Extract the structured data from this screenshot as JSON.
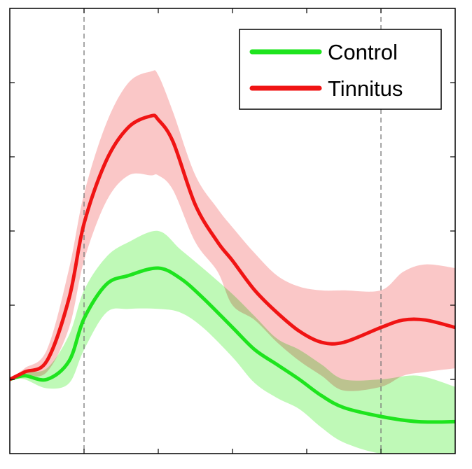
{
  "chart_data": {
    "type": "line",
    "title": "",
    "xlabel": "",
    "ylabel": "",
    "xlim": [
      0,
      6
    ],
    "ylim": [
      -1,
      5
    ],
    "grid": false,
    "legend_position": "top-right",
    "vertical_lines": [
      1,
      5
    ],
    "series": [
      {
        "name": "Control",
        "color": "#1ee41e",
        "band_color": "#b4f8aa",
        "x": [
          0,
          0.2,
          0.5,
          0.8,
          1.0,
          1.3,
          1.6,
          2.0,
          2.3,
          2.6,
          3.0,
          3.3,
          3.6,
          3.9,
          4.2,
          4.5,
          5.0,
          5.5,
          6.0
        ],
        "mean": [
          0.0,
          0.05,
          0.0,
          0.25,
          0.82,
          1.28,
          1.4,
          1.5,
          1.36,
          1.1,
          0.7,
          0.4,
          0.2,
          0.0,
          -0.22,
          -0.38,
          -0.5,
          -0.57,
          -0.57
        ],
        "upper": [
          0.0,
          0.1,
          0.15,
          0.6,
          1.2,
          1.65,
          1.85,
          2.0,
          1.75,
          1.5,
          1.15,
          0.85,
          0.55,
          0.4,
          0.2,
          0.0,
          0.0,
          0.05,
          -0.1
        ],
        "lower": [
          0.0,
          0.0,
          -0.12,
          -0.05,
          0.4,
          0.9,
          0.95,
          0.95,
          0.9,
          0.7,
          0.3,
          -0.05,
          -0.25,
          -0.4,
          -0.65,
          -0.85,
          -1.0,
          -1.0,
          -1.0
        ]
      },
      {
        "name": "Tinnitus",
        "color": "#f01414",
        "band_color": "#f8b4b4",
        "x": [
          0,
          0.2,
          0.5,
          0.8,
          1.0,
          1.3,
          1.6,
          1.9,
          2.0,
          2.2,
          2.5,
          2.8,
          3.0,
          3.3,
          3.6,
          3.9,
          4.2,
          4.5,
          5.0,
          5.3,
          5.6,
          6.0
        ],
        "mean": [
          0.0,
          0.1,
          0.25,
          1.1,
          2.1,
          2.95,
          3.4,
          3.55,
          3.5,
          3.2,
          2.35,
          1.85,
          1.6,
          1.2,
          0.9,
          0.65,
          0.5,
          0.5,
          0.7,
          0.8,
          0.8,
          0.7
        ],
        "upper": [
          0.0,
          0.15,
          0.4,
          1.5,
          2.5,
          3.45,
          4.0,
          4.15,
          4.1,
          3.6,
          2.75,
          2.3,
          2.05,
          1.7,
          1.4,
          1.25,
          1.2,
          1.2,
          1.2,
          1.45,
          1.55,
          1.5
        ],
        "lower": [
          0.0,
          0.05,
          0.1,
          0.7,
          1.6,
          2.4,
          2.75,
          2.75,
          2.75,
          2.55,
          1.85,
          1.45,
          1.0,
          0.8,
          0.5,
          0.25,
          0.05,
          -0.15,
          -0.1,
          0.05,
          0.1,
          0.15
        ]
      }
    ]
  }
}
